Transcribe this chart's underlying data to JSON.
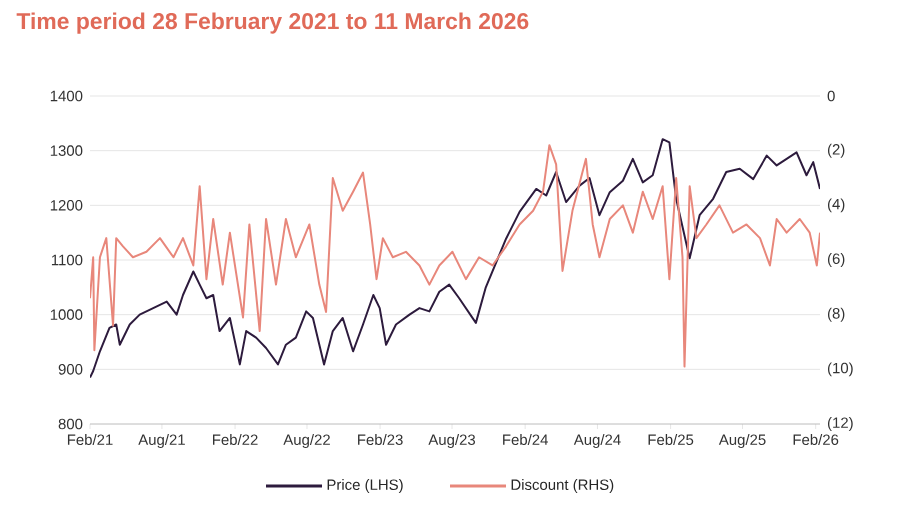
{
  "chart_data": {
    "type": "line",
    "title": "Time period 28 February 2021 to 11 March 2026",
    "xlim": [
      "2021-02-28",
      "2026-03-11"
    ],
    "xticks": [
      {
        "value": "2021-02-28",
        "label": "Feb/21"
      },
      {
        "value": "2021-08-28",
        "label": "Aug/21"
      },
      {
        "value": "2022-02-28",
        "label": "Feb/22"
      },
      {
        "value": "2022-08-28",
        "label": "Aug/22"
      },
      {
        "value": "2023-02-28",
        "label": "Feb/23"
      },
      {
        "value": "2023-08-28",
        "label": "Aug/23"
      },
      {
        "value": "2024-02-28",
        "label": "Feb/24"
      },
      {
        "value": "2024-08-28",
        "label": "Aug/24"
      },
      {
        "value": "2025-02-28",
        "label": "Feb/25"
      },
      {
        "value": "2025-08-28",
        "label": "Aug/25"
      },
      {
        "value": "2026-02-28",
        "label": "Feb/26"
      }
    ],
    "ylim": [
      800,
      1400
    ],
    "yticks": [
      800,
      900,
      1000,
      1100,
      1200,
      1300,
      1400
    ],
    "y2lim": [
      -12,
      0
    ],
    "y2ticks": [
      {
        "value": -12,
        "label": "(12)"
      },
      {
        "value": -10,
        "label": "(10)"
      },
      {
        "value": -8,
        "label": "(8)"
      },
      {
        "value": -6,
        "label": "(6)"
      },
      {
        "value": -4,
        "label": "(4)"
      },
      {
        "value": -2,
        "label": "(2)"
      },
      0
    ],
    "grid": "y",
    "legend": "bottom",
    "line_style": "solid",
    "series": [
      {
        "name": "Price (LHS)",
        "color": "#2d1b3d",
        "x": [
          "2021-02-28",
          "2021-03-08",
          "2021-03-25",
          "2021-04-18",
          "2021-05-05",
          "2021-05-14",
          "2021-06-08",
          "2021-07-03",
          "2021-08-06",
          "2021-09-09",
          "2021-10-04",
          "2021-10-20",
          "2021-11-15",
          "2021-12-01",
          "2021-12-18",
          "2022-01-04",
          "2022-01-20",
          "2022-02-15",
          "2022-03-12",
          "2022-03-28",
          "2022-04-22",
          "2022-05-17",
          "2022-06-16",
          "2022-07-06",
          "2022-07-31",
          "2022-08-26",
          "2022-09-12",
          "2022-10-10",
          "2022-11-01",
          "2022-11-26",
          "2022-12-22",
          "2023-01-16",
          "2023-02-11",
          "2023-02-27",
          "2023-03-15",
          "2023-04-09",
          "2023-05-13",
          "2023-06-07",
          "2023-07-02",
          "2023-07-27",
          "2023-08-21",
          "2023-09-15",
          "2023-10-27",
          "2023-11-21",
          "2024-01-11",
          "2024-02-14",
          "2024-03-27",
          "2024-04-21",
          "2024-05-16",
          "2024-06-10",
          "2024-07-14",
          "2024-08-08",
          "2024-09-02",
          "2024-09-28",
          "2024-10-31",
          "2024-11-25",
          "2024-12-20",
          "2025-01-14",
          "2025-02-08",
          "2025-02-25",
          "2025-03-14",
          "2025-04-17",
          "2025-05-12",
          "2025-06-15",
          "2025-07-18",
          "2025-08-21",
          "2025-09-24",
          "2025-10-28",
          "2025-11-22",
          "2025-12-17",
          "2026-01-11",
          "2026-02-05",
          "2026-02-22",
          "2026-03-11"
        ],
        "values": [
          885,
          897,
          933,
          976,
          982,
          945,
          982,
          1000,
          1012,
          1024,
          1000,
          1036,
          1079,
          1055,
          1030,
          1036,
          970,
          994,
          909,
          970,
          958,
          939,
          909,
          945,
          958,
          1006,
          994,
          909,
          970,
          994,
          933,
          982,
          1036,
          1012,
          945,
          982,
          1000,
          1012,
          1006,
          1042,
          1055,
          1030,
          985,
          1050,
          1139,
          1188,
          1230,
          1218,
          1261,
          1206,
          1236,
          1250,
          1182,
          1224,
          1245,
          1285,
          1242,
          1255,
          1321,
          1315,
          1212,
          1103,
          1182,
          1212,
          1261,
          1267,
          1248,
          1291,
          1273,
          1285,
          1297,
          1255,
          1279,
          1230
        ]
      },
      {
        "name": "Discount (RHS)",
        "color": "#e8877b",
        "axis": "y2",
        "x": [
          "2021-02-28",
          "2021-03-08",
          "2021-03-11",
          "2021-03-25",
          "2021-04-10",
          "2021-04-27",
          "2021-05-05",
          "2021-05-22",
          "2021-06-16",
          "2021-07-20",
          "2021-08-23",
          "2021-09-26",
          "2021-10-20",
          "2021-11-15",
          "2021-12-01",
          "2021-12-18",
          "2022-01-04",
          "2022-01-28",
          "2022-02-15",
          "2022-03-20",
          "2022-04-05",
          "2022-05-01",
          "2022-05-17",
          "2022-06-11",
          "2022-07-06",
          "2022-07-31",
          "2022-09-03",
          "2022-09-28",
          "2022-10-15",
          "2022-11-01",
          "2022-11-26",
          "2022-12-22",
          "2023-01-16",
          "2023-02-03",
          "2023-02-19",
          "2023-03-07",
          "2023-04-01",
          "2023-05-04",
          "2023-06-07",
          "2023-07-02",
          "2023-07-27",
          "2023-08-29",
          "2023-10-02",
          "2023-11-04",
          "2023-12-08",
          "2024-01-11",
          "2024-02-14",
          "2024-03-19",
          "2024-04-13",
          "2024-04-29",
          "2024-05-16",
          "2024-06-01",
          "2024-06-26",
          "2024-07-30",
          "2024-08-16",
          "2024-09-02",
          "2024-09-28",
          "2024-10-31",
          "2024-11-25",
          "2024-12-20",
          "2025-01-14",
          "2025-02-08",
          "2025-02-25",
          "2025-03-14",
          "2025-03-30",
          "2025-04-04",
          "2025-04-17",
          "2025-05-04",
          "2025-05-29",
          "2025-07-01",
          "2025-08-04",
          "2025-09-07",
          "2025-10-11",
          "2025-11-05",
          "2025-11-22",
          "2025-12-17",
          "2026-01-19",
          "2026-02-13",
          "2026-03-03",
          "2026-03-11"
        ],
        "values": [
          -7.4,
          -5.9,
          -9.3,
          -5.9,
          -5.2,
          -8.4,
          -5.2,
          -5.5,
          -5.9,
          -5.7,
          -5.2,
          -5.9,
          -5.2,
          -6.2,
          -3.3,
          -6.7,
          -4.5,
          -6.9,
          -5.0,
          -8.1,
          -4.7,
          -8.6,
          -4.5,
          -6.9,
          -4.5,
          -5.9,
          -4.7,
          -6.9,
          -7.9,
          -3.0,
          -4.2,
          -3.5,
          -2.8,
          -4.7,
          -6.7,
          -5.2,
          -5.9,
          -5.7,
          -6.2,
          -6.9,
          -6.2,
          -5.7,
          -6.7,
          -5.9,
          -6.2,
          -5.5,
          -4.7,
          -4.2,
          -3.5,
          -1.8,
          -2.5,
          -6.4,
          -4.2,
          -2.3,
          -4.7,
          -5.9,
          -4.5,
          -4.0,
          -5.0,
          -3.5,
          -4.5,
          -3.3,
          -6.7,
          -3.0,
          -5.9,
          -9.9,
          -3.3,
          -5.2,
          -4.7,
          -4.0,
          -5.0,
          -4.7,
          -5.2,
          -6.2,
          -4.5,
          -5.0,
          -4.5,
          -5.0,
          -6.2,
          -5.0
        ]
      }
    ]
  }
}
